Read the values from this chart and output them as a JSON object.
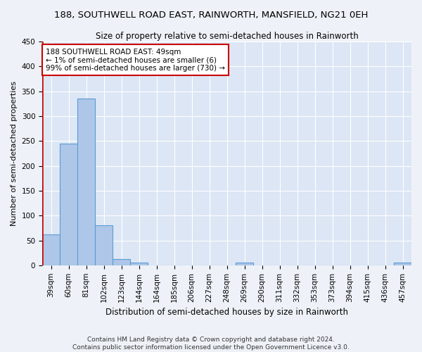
{
  "title": "188, SOUTHWELL ROAD EAST, RAINWORTH, MANSFIELD, NG21 0EH",
  "subtitle": "Size of property relative to semi-detached houses in Rainworth",
  "xlabel": "Distribution of semi-detached houses by size in Rainworth",
  "ylabel": "Number of semi-detached properties",
  "categories": [
    "39sqm",
    "60sqm",
    "81sqm",
    "102sqm",
    "123sqm",
    "144sqm",
    "164sqm",
    "185sqm",
    "206sqm",
    "227sqm",
    "248sqm",
    "269sqm",
    "290sqm",
    "311sqm",
    "332sqm",
    "353sqm",
    "373sqm",
    "394sqm",
    "415sqm",
    "436sqm",
    "457sqm"
  ],
  "bar_heights": [
    62,
    245,
    335,
    81,
    12,
    6,
    0,
    0,
    0,
    0,
    0,
    5,
    0,
    0,
    0,
    0,
    0,
    0,
    0,
    0,
    5
  ],
  "bar_color": "#aec6e8",
  "bar_edge_color": "#5b9bd5",
  "highlight_color": "#cc0000",
  "annotation_title": "188 SOUTHWELL ROAD EAST: 49sqm",
  "annotation_line1": "← 1% of semi-detached houses are smaller (6)",
  "annotation_line2": "99% of semi-detached houses are larger (730) →",
  "ylim": [
    0,
    450
  ],
  "yticks": [
    0,
    50,
    100,
    150,
    200,
    250,
    300,
    350,
    400,
    450
  ],
  "footer1": "Contains HM Land Registry data © Crown copyright and database right 2024.",
  "footer2": "Contains public sector information licensed under the Open Government Licence v3.0.",
  "bg_color": "#eef2f8",
  "plot_bg_color": "#dce6f5",
  "grid_color": "#ffffff",
  "title_fontsize": 9.5,
  "subtitle_fontsize": 8.5,
  "ylabel_fontsize": 8,
  "xlabel_fontsize": 8.5,
  "tick_fontsize": 7.5,
  "annotation_fontsize": 7.5,
  "footer_fontsize": 6.5
}
